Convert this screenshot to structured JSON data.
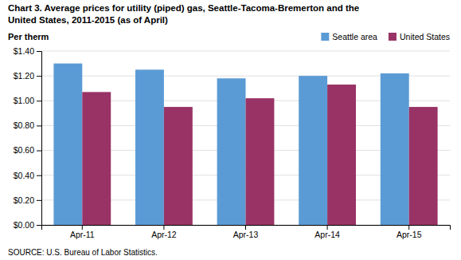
{
  "chart_data": {
    "type": "bar",
    "title": "Chart 3. Average prices for utility (piped) gas, Seattle-Tacoma-Bremerton and the",
    "subtitle": "United States, 2011-2015  (as of April)",
    "ylabel": "Per therm",
    "annotations": [
      "SOURCE: U.S. Bureau of Labor Statistics."
    ],
    "categories": [
      "Apr-11",
      "Apr-12",
      "Apr-13",
      "Apr-14",
      "Apr-15"
    ],
    "series": [
      {
        "name": "Seattle area",
        "color": "#5b9bd5",
        "values": [
          1.3,
          1.25,
          1.18,
          1.2,
          1.22
        ]
      },
      {
        "name": "United States",
        "color": "#993366",
        "values": [
          1.07,
          0.95,
          1.02,
          1.13,
          0.95
        ]
      }
    ],
    "ylim": [
      0.0,
      1.4
    ],
    "yticks": [
      {
        "value": 0.0,
        "label": "$0.00"
      },
      {
        "value": 0.2,
        "label": "$0.20"
      },
      {
        "value": 0.4,
        "label": "$0.40"
      },
      {
        "value": 0.6,
        "label": "$0.60"
      },
      {
        "value": 0.8,
        "label": "$0.80"
      },
      {
        "value": 1.0,
        "label": "$1.00"
      },
      {
        "value": 1.2,
        "label": "$1.20"
      },
      {
        "value": 1.4,
        "label": "$1.40"
      }
    ],
    "grid": true,
    "legend": "top-right"
  }
}
